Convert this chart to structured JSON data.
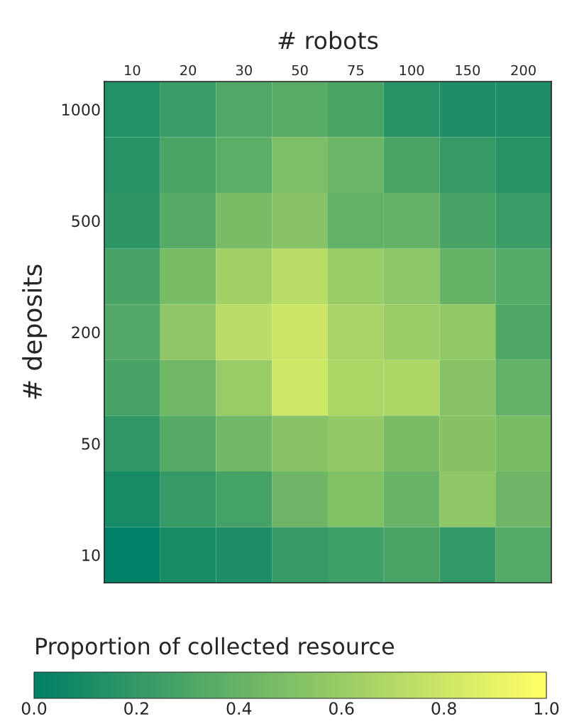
{
  "chart_data": {
    "type": "heatmap",
    "xlabel": "# robots",
    "ylabel": "# deposits",
    "clabel": "Proportion of collected resource",
    "categories": [
      "10",
      "20",
      "30",
      "50",
      "75",
      "100",
      "150",
      "200"
    ],
    "y_categories": [
      "1000",
      null,
      "500",
      null,
      "200",
      null,
      "50",
      null,
      "10"
    ],
    "cells": [
      [
        0.14,
        0.23,
        0.32,
        0.35,
        0.29,
        0.15,
        0.12,
        0.12
      ],
      [
        0.15,
        0.29,
        0.36,
        0.49,
        0.42,
        0.29,
        0.21,
        0.15
      ],
      [
        0.18,
        0.34,
        0.48,
        0.53,
        0.39,
        0.39,
        0.28,
        0.23
      ],
      [
        0.28,
        0.47,
        0.64,
        0.72,
        0.6,
        0.55,
        0.4,
        0.33
      ],
      [
        0.32,
        0.56,
        0.73,
        0.79,
        0.66,
        0.6,
        0.57,
        0.31
      ],
      [
        0.28,
        0.44,
        0.6,
        0.8,
        0.68,
        0.68,
        0.53,
        0.39
      ],
      [
        0.19,
        0.34,
        0.44,
        0.53,
        0.58,
        0.48,
        0.52,
        0.48
      ],
      [
        0.09,
        0.21,
        0.27,
        0.43,
        0.51,
        0.41,
        0.56,
        0.43
      ],
      [
        0.0,
        0.1,
        0.12,
        0.21,
        0.24,
        0.29,
        0.2,
        0.33
      ]
    ],
    "clim": [
      0,
      1
    ],
    "cticks": [
      {
        "value": 0,
        "label": "0.0"
      },
      0.2,
      0.4,
      0.6,
      0.8,
      {
        "value": 1,
        "label": "1.0"
      }
    ]
  }
}
